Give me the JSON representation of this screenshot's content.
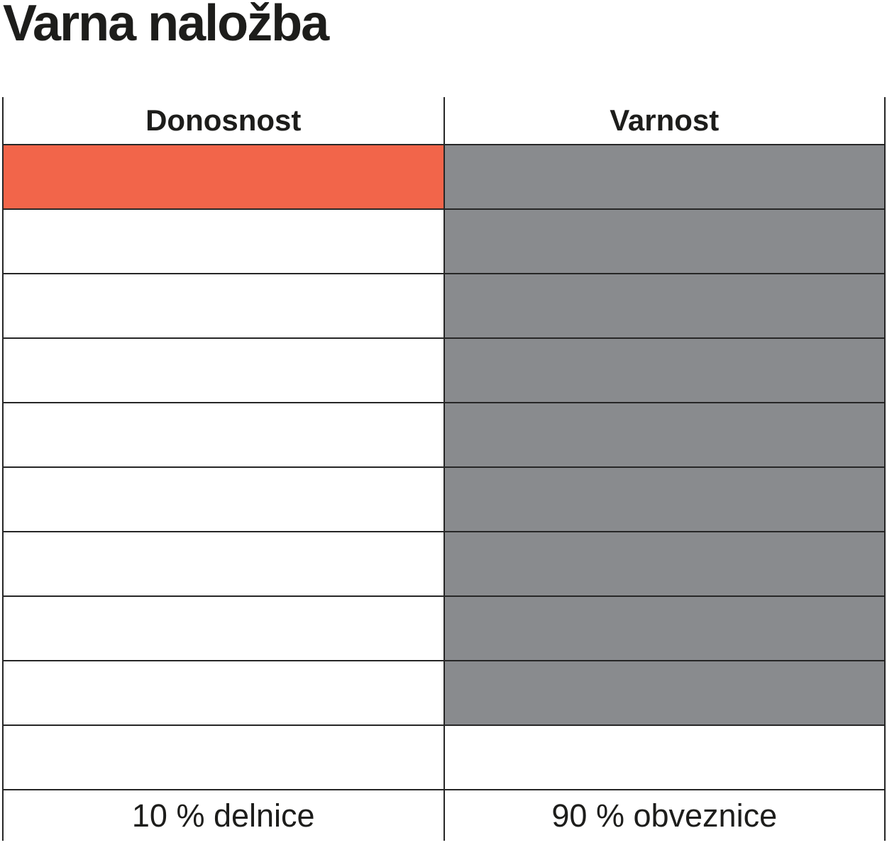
{
  "title": "Varna naložba",
  "table": {
    "columns": [
      {
        "label": "Donosnost"
      },
      {
        "label": "Varnost"
      }
    ],
    "footer": [
      "10 % delnice",
      "90 % obveznice"
    ]
  },
  "colors": {
    "donosnost_fill": "#f2654a",
    "varnost_fill": "#898b8e",
    "border": "#262626",
    "text": "#1d1d1b"
  },
  "chart_data": {
    "type": "table",
    "title": "Varna naložba",
    "columns": [
      "Donosnost",
      "Varnost"
    ],
    "total_rows": 10,
    "fill_from": "top",
    "series": [
      {
        "name": "Donosnost",
        "value_pct": 10,
        "filled_rows": 1,
        "color": "#f2654a",
        "label": "10 % delnice"
      },
      {
        "name": "Varnost",
        "value_pct": 90,
        "filled_rows": 9,
        "color": "#898b8e",
        "label": "90 % obveznice"
      }
    ],
    "legend_position": "bottom"
  }
}
